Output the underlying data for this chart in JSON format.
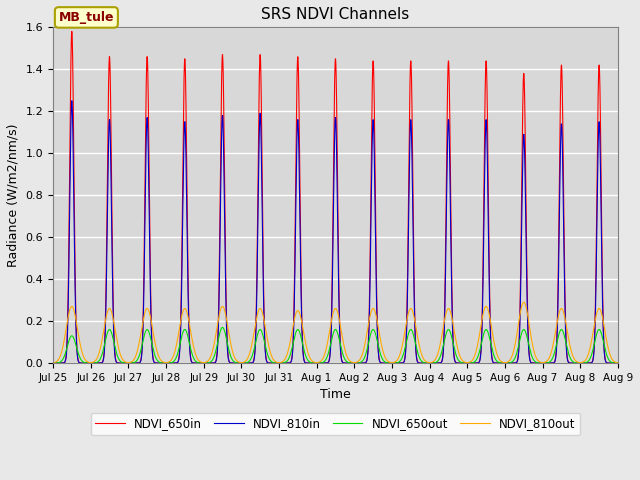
{
  "title": "SRS NDVI Channels",
  "xlabel": "Time",
  "ylabel": "Radiance (W/m2/nm/s)",
  "ylim": [
    0,
    1.6
  ],
  "annotation_text": "MB_tule",
  "background_color": "#d8d8d8",
  "fig_facecolor": "#e8e8e8",
  "grid_color": "white",
  "lines": [
    {
      "label": "NDVI_650in",
      "color": "#ff0000"
    },
    {
      "label": "NDVI_810in",
      "color": "#0000cc"
    },
    {
      "label": "NDVI_650out",
      "color": "#00dd00"
    },
    {
      "label": "NDVI_810out",
      "color": "#ffaa00"
    }
  ],
  "peaks_650in": [
    1.58,
    1.46,
    1.46,
    1.45,
    1.47,
    1.47,
    1.46,
    1.45,
    1.44,
    1.44,
    1.44,
    1.44,
    1.38,
    1.42,
    1.42
  ],
  "peaks_810in": [
    1.25,
    1.16,
    1.17,
    1.15,
    1.18,
    1.19,
    1.16,
    1.17,
    1.16,
    1.16,
    1.16,
    1.16,
    1.09,
    1.14,
    1.15
  ],
  "peaks_650out": [
    0.13,
    0.16,
    0.16,
    0.16,
    0.17,
    0.16,
    0.16,
    0.16,
    0.16,
    0.16,
    0.16,
    0.16,
    0.16,
    0.16,
    0.16
  ],
  "peaks_810out": [
    0.27,
    0.26,
    0.26,
    0.26,
    0.27,
    0.26,
    0.25,
    0.26,
    0.26,
    0.26,
    0.26,
    0.27,
    0.29,
    0.26,
    0.26
  ],
  "num_days": 15,
  "yticks": [
    0.0,
    0.2,
    0.4,
    0.6,
    0.8,
    1.0,
    1.2,
    1.4,
    1.6
  ],
  "xtick_labels": [
    "Jul 25",
    "Jul 26",
    "Jul 27",
    "Jul 28",
    "Jul 29",
    "Jul 30",
    "Jul 31",
    "Aug 1",
    "Aug 2",
    "Aug 3",
    "Aug 4",
    "Aug 5",
    "Aug 6",
    "Aug 7",
    "Aug 8",
    "Aug 9"
  ]
}
